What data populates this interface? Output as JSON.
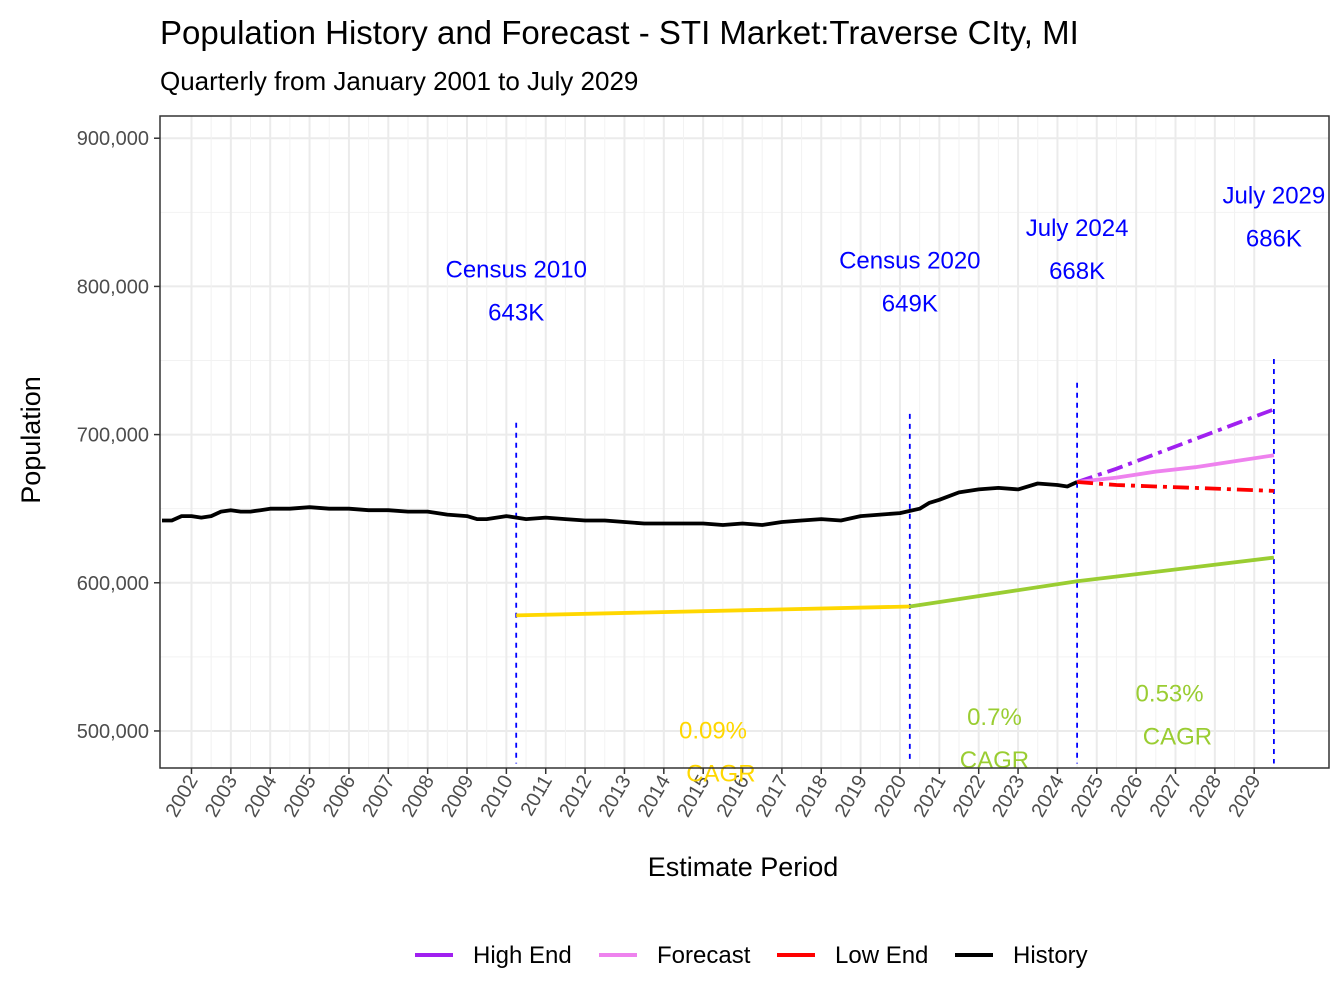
{
  "chart_data": {
    "type": "line",
    "title": "Population History and Forecast - STI Market:Traverse CIty, MI",
    "subtitle": "Quarterly from January 2001 to July 2029",
    "xlabel": "Estimate Period",
    "ylabel": "Population",
    "xlim": [
      2001.2,
      2030.9
    ],
    "ylim": [
      475000,
      915000
    ],
    "yticks": [
      500000,
      600000,
      700000,
      800000,
      900000
    ],
    "ytick_labels": [
      "500,000",
      "600,000",
      "700,000",
      "800,000",
      "900,000"
    ],
    "xticks": [
      2002,
      2003,
      2004,
      2005,
      2006,
      2007,
      2008,
      2009,
      2010,
      2011,
      2012,
      2013,
      2014,
      2015,
      2016,
      2017,
      2018,
      2019,
      2020,
      2021,
      2022,
      2023,
      2024,
      2025,
      2026,
      2027,
      2028,
      2029
    ],
    "xtick_labels": [
      "2002",
      "2003",
      "2004",
      "2005",
      "2006",
      "2007",
      "2008",
      "2009",
      "2010",
      "2011",
      "2012",
      "2013",
      "2014",
      "2015",
      "2016",
      "2017",
      "2018",
      "2019",
      "2020",
      "2021",
      "2022",
      "2023",
      "2024",
      "2025",
      "2026",
      "2027",
      "2028",
      "2029"
    ],
    "series": [
      {
        "name": "History",
        "color": "#000000",
        "dash": "solid",
        "x": [
          2001.25,
          2001.5,
          2001.75,
          2002.0,
          2002.25,
          2002.5,
          2002.75,
          2003.0,
          2003.25,
          2003.5,
          2003.75,
          2004.0,
          2004.5,
          2005.0,
          2005.5,
          2006.0,
          2006.5,
          2007.0,
          2007.5,
          2008.0,
          2008.5,
          2009.0,
          2009.25,
          2009.5,
          2010.0,
          2010.5,
          2011.0,
          2011.5,
          2012.0,
          2012.5,
          2013.0,
          2013.5,
          2014.0,
          2014.5,
          2015.0,
          2015.5,
          2016.0,
          2016.5,
          2017.0,
          2017.5,
          2018.0,
          2018.5,
          2019.0,
          2019.5,
          2020.0,
          2020.5,
          2020.75,
          2021.0,
          2021.5,
          2022.0,
          2022.5,
          2023.0,
          2023.5,
          2024.0,
          2024.25,
          2024.5
        ],
        "values": [
          642000,
          642000,
          645000,
          645000,
          644000,
          645000,
          648000,
          649000,
          648000,
          648000,
          649000,
          650000,
          650000,
          651000,
          650000,
          650000,
          649000,
          649000,
          648000,
          648000,
          646000,
          645000,
          643000,
          643000,
          645000,
          643000,
          644000,
          643000,
          642000,
          642000,
          641000,
          640000,
          640000,
          640000,
          640000,
          639000,
          640000,
          639000,
          641000,
          642000,
          643000,
          642000,
          645000,
          646000,
          647000,
          650000,
          654000,
          656000,
          661000,
          663000,
          664000,
          663000,
          667000,
          666000,
          665000,
          668000
        ]
      },
      {
        "name": "High End",
        "color": "#a020f0",
        "dash": "dashdot",
        "x": [
          2024.5,
          2025.5,
          2026.5,
          2027.5,
          2028.5,
          2029.5
        ],
        "values": [
          668000,
          677000,
          687000,
          697000,
          707000,
          717000
        ]
      },
      {
        "name": "Forecast",
        "color": "#ee82ee",
        "dash": "solid",
        "x": [
          2024.5,
          2025.5,
          2026.5,
          2027.5,
          2028.5,
          2029.5
        ],
        "values": [
          668000,
          671000,
          675000,
          678000,
          682000,
          686000
        ]
      },
      {
        "name": "Low End",
        "color": "#ff0000",
        "dash": "dashdot",
        "x": [
          2024.5,
          2025.5,
          2026.5,
          2027.5,
          2028.5,
          2029.5
        ],
        "values": [
          668000,
          666000,
          665000,
          664000,
          663000,
          662000
        ]
      },
      {
        "name": "CAGR 2010-2020",
        "color": "#ffd700",
        "dash": "solid",
        "legend": false,
        "x": [
          2010.25,
          2020.25
        ],
        "values": [
          578000,
          584000
        ]
      },
      {
        "name": "CAGR 2020-2029",
        "color": "#9acd32",
        "dash": "solid",
        "legend": false,
        "x": [
          2020.25,
          2024.5,
          2029.5
        ],
        "values": [
          584000,
          601000,
          617000
        ]
      }
    ],
    "vlines": [
      {
        "x": 2010.25,
        "y0": 478000,
        "y1": 708000
      },
      {
        "x": 2020.25,
        "y0": 478000,
        "y1": 714000
      },
      {
        "x": 2024.5,
        "y0": 478000,
        "y1": 735000
      },
      {
        "x": 2029.5,
        "y0": 478000,
        "y1": 751000
      }
    ],
    "annotations": [
      {
        "line1": "Census 2010",
        "line2": "643K",
        "x": 2010.25,
        "y1": 806000,
        "y2": 777000,
        "color": "#0000ff"
      },
      {
        "line1": "Census 2020",
        "line2": "649K",
        "x": 2020.25,
        "y1": 812000,
        "y2": 783000,
        "color": "#0000ff"
      },
      {
        "line1": "July 2024",
        "line2": "668K",
        "x": 2024.5,
        "y1": 834000,
        "y2": 805000,
        "color": "#0000ff"
      },
      {
        "line1": "July 2029",
        "line2": "686K",
        "x": 2029.5,
        "y1": 856000,
        "y2": 827000,
        "color": "#0000ff"
      },
      {
        "line1": "0.09%",
        "line2": "CAGR",
        "x": 2015.25,
        "y1": 495000,
        "y2": 466000,
        "x2_offset": 0.2,
        "color": "#ffd700"
      },
      {
        "line1": "0.7%",
        "line2": "CAGR",
        "x": 2022.4,
        "y1": 504000,
        "y2": 475000,
        "color": "#9acd32"
      },
      {
        "line1": "0.53%",
        "line2": "CAGR",
        "x": 2026.85,
        "y1": 520000,
        "y2": 491000,
        "x2_offset": 0.2,
        "color": "#9acd32"
      }
    ],
    "legend": {
      "position": "bottom",
      "entries": [
        {
          "label": "High End",
          "color": "#a020f0"
        },
        {
          "label": "Forecast",
          "color": "#ee82ee"
        },
        {
          "label": "Low End",
          "color": "#ff0000"
        },
        {
          "label": "History",
          "color": "#000000"
        }
      ]
    }
  }
}
